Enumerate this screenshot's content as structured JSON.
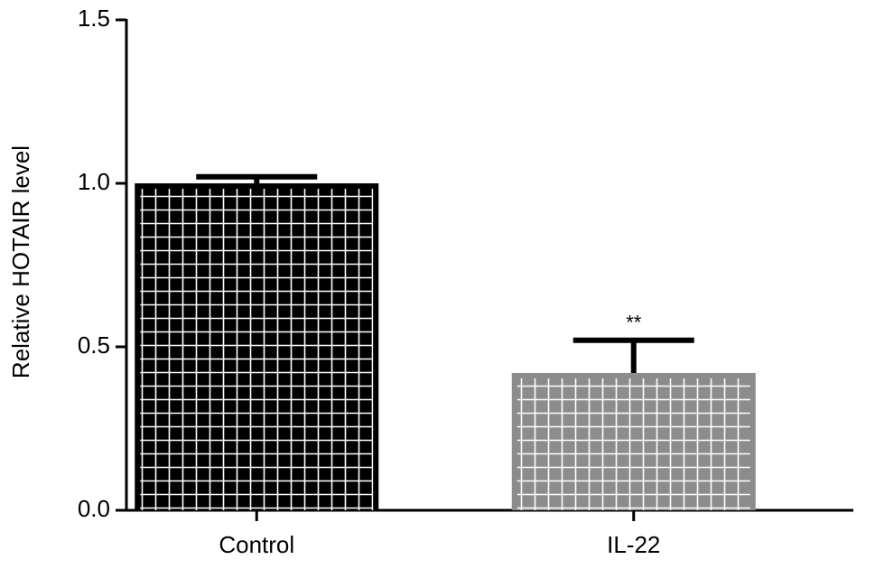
{
  "chart_data": {
    "type": "bar",
    "y_label": "Relative HOTAIR level",
    "categories": [
      "Control",
      "IL-22"
    ],
    "values": [
      1.0,
      0.42
    ],
    "errors": [
      0.02,
      0.1
    ],
    "colors": [
      "#000000",
      "#8c8c8c"
    ],
    "annotations": [
      null,
      "**"
    ],
    "ylim": [
      0,
      1.5
    ],
    "yticks": [
      {
        "value": 0,
        "label": "0.0"
      },
      0.5,
      {
        "value": 1,
        "label": "1.0"
      },
      1.5
    ]
  }
}
